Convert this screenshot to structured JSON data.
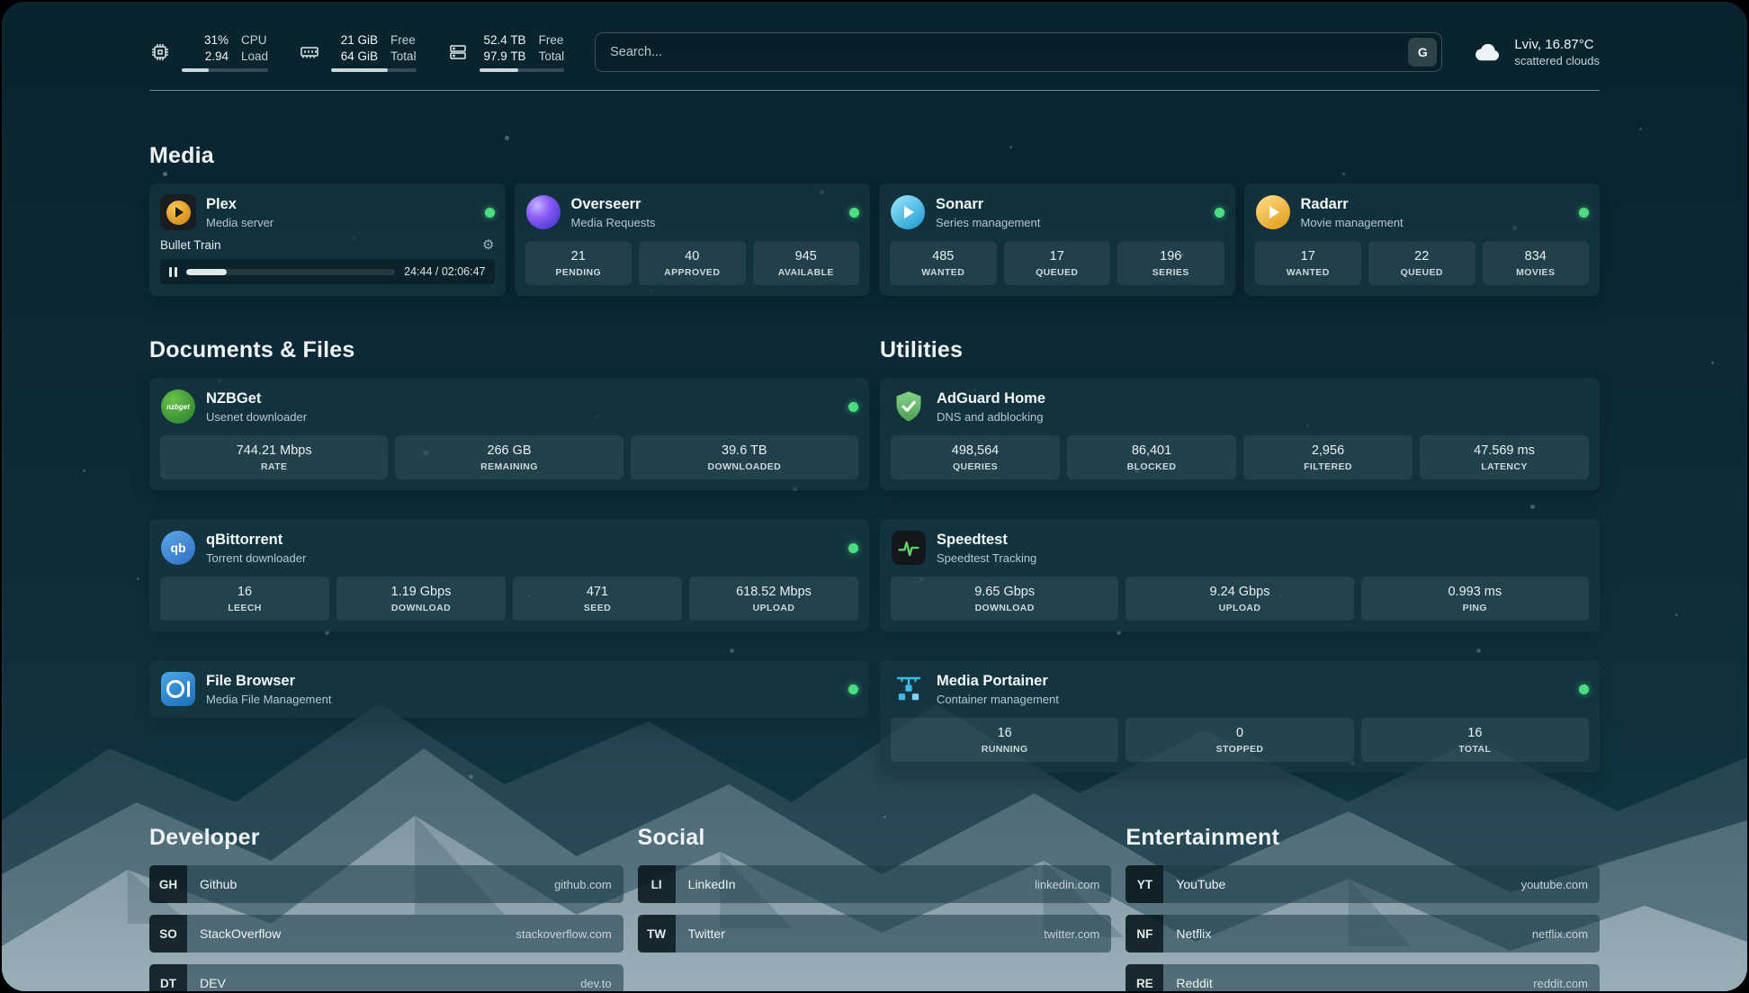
{
  "topbar": {
    "cpu": {
      "icon": "cpu-icon",
      "values": [
        "31%",
        "2.94"
      ],
      "labels": [
        "CPU",
        "Load"
      ],
      "bar_percent": 31
    },
    "memory": {
      "icon": "memory-icon",
      "values": [
        "21 GiB",
        "64 GiB"
      ],
      "labels": [
        "Free",
        "Total"
      ],
      "bar_percent": 67
    },
    "disk": {
      "icon": "disk-icon",
      "values": [
        "52.4 TB",
        "97.9 TB"
      ],
      "labels": [
        "Free",
        "Total"
      ],
      "bar_percent": 46
    },
    "search": {
      "placeholder": "Search...",
      "button_label": "G"
    },
    "weather": {
      "icon": "cloud-icon",
      "location": "Lviv, 16.87°C",
      "condition": "scattered clouds"
    }
  },
  "sections": {
    "media": {
      "title": "Media",
      "cards": [
        {
          "icon": "plex-icon",
          "name": "Plex",
          "subtitle": "Media server",
          "status": "online",
          "now_playing": {
            "title": "Bullet Train",
            "time": "24:44 / 02:06:47",
            "progress_percent": 19.5
          }
        },
        {
          "icon": "overseerr-icon",
          "name": "Overseerr",
          "subtitle": "Media Requests",
          "status": "online",
          "stats": [
            {
              "value": "21",
              "label": "PENDING"
            },
            {
              "value": "40",
              "label": "APPROVED"
            },
            {
              "value": "945",
              "label": "AVAILABLE"
            }
          ]
        },
        {
          "icon": "sonarr-icon",
          "name": "Sonarr",
          "subtitle": "Series management",
          "status": "online",
          "stats": [
            {
              "value": "485",
              "label": "WANTED"
            },
            {
              "value": "17",
              "label": "QUEUED"
            },
            {
              "value": "196",
              "label": "SERIES"
            }
          ]
        },
        {
          "icon": "radarr-icon",
          "name": "Radarr",
          "subtitle": "Movie management",
          "status": "online",
          "stats": [
            {
              "value": "17",
              "label": "WANTED"
            },
            {
              "value": "22",
              "label": "QUEUED"
            },
            {
              "value": "834",
              "label": "MOVIES"
            }
          ]
        }
      ]
    },
    "documents": {
      "title": "Documents & Files",
      "cards": [
        {
          "icon": "nzbget-icon",
          "icon_label": "nzbget",
          "name": "NZBGet",
          "subtitle": "Usenet downloader",
          "status": "online",
          "stats": [
            {
              "value": "744.21 Mbps",
              "label": "RATE"
            },
            {
              "value": "266 GB",
              "label": "REMAINING"
            },
            {
              "value": "39.6 TB",
              "label": "DOWNLOADED"
            }
          ]
        },
        {
          "icon": "qbittorrent-icon",
          "icon_label": "qb",
          "name": "qBittorrent",
          "subtitle": "Torrent downloader",
          "status": "online",
          "stats": [
            {
              "value": "16",
              "label": "LEECH"
            },
            {
              "value": "1.19 Gbps",
              "label": "DOWNLOAD"
            },
            {
              "value": "471",
              "label": "SEED"
            },
            {
              "value": "618.52 Mbps",
              "label": "UPLOAD"
            }
          ]
        },
        {
          "icon": "filebrowser-icon",
          "name": "File Browser",
          "subtitle": "Media File Management",
          "status": "online",
          "stats": []
        }
      ]
    },
    "utilities": {
      "title": "Utilities",
      "cards": [
        {
          "icon": "adguard-icon",
          "name": "AdGuard Home",
          "subtitle": "DNS and adblocking",
          "stats": [
            {
              "value": "498,564",
              "label": "QUERIES"
            },
            {
              "value": "86,401",
              "label": "BLOCKED"
            },
            {
              "value": "2,956",
              "label": "FILTERED"
            },
            {
              "value": "47.569 ms",
              "label": "LATENCY"
            }
          ]
        },
        {
          "icon": "speedtest-icon",
          "name": "Speedtest",
          "subtitle": "Speedtest Tracking",
          "stats": [
            {
              "value": "9.65 Gbps",
              "label": "DOWNLOAD"
            },
            {
              "value": "9.24 Gbps",
              "label": "UPLOAD"
            },
            {
              "value": "0.993 ms",
              "label": "PING"
            }
          ]
        },
        {
          "icon": "portainer-icon",
          "name": "Media Portainer",
          "subtitle": "Container management",
          "status": "online",
          "stats": [
            {
              "value": "16",
              "label": "RUNNING"
            },
            {
              "value": "0",
              "label": "STOPPED"
            },
            {
              "value": "16",
              "label": "TOTAL"
            }
          ]
        }
      ]
    },
    "bookmarks": [
      {
        "title": "Developer",
        "links": [
          {
            "abbr": "GH",
            "name": "Github",
            "url": "github.com"
          },
          {
            "abbr": "SO",
            "name": "StackOverflow",
            "url": "stackoverflow.com"
          },
          {
            "abbr": "DT",
            "name": "DEV",
            "url": "dev.to"
          }
        ]
      },
      {
        "title": "Social",
        "links": [
          {
            "abbr": "LI",
            "name": "LinkedIn",
            "url": "linkedin.com"
          },
          {
            "abbr": "TW",
            "name": "Twitter",
            "url": "twitter.com"
          }
        ]
      },
      {
        "title": "Entertainment",
        "links": [
          {
            "abbr": "YT",
            "name": "YouTube",
            "url": "youtube.com"
          },
          {
            "abbr": "NF",
            "name": "Netflix",
            "url": "netflix.com"
          },
          {
            "abbr": "RE",
            "name": "Reddit",
            "url": "reddit.com"
          }
        ]
      }
    ]
  },
  "colors": {
    "status_online": "#4ade80",
    "plex_amber": "#e5a00d",
    "overseerr_purple": "#6d5ae0",
    "sonarr_blue": "#35c5f4",
    "radarr_gold": "#f2a81c",
    "nzbget_green": "#3f9e3f",
    "qbittorrent_blue": "#3d7dd8",
    "filebrowser_blue": "#2e86d0",
    "adguard_green": "#67b279",
    "speedtest_green": "#5ed46a",
    "portainer_blue": "#3dbbe8",
    "card_background": "rgba(24,56,67,0.6)"
  }
}
